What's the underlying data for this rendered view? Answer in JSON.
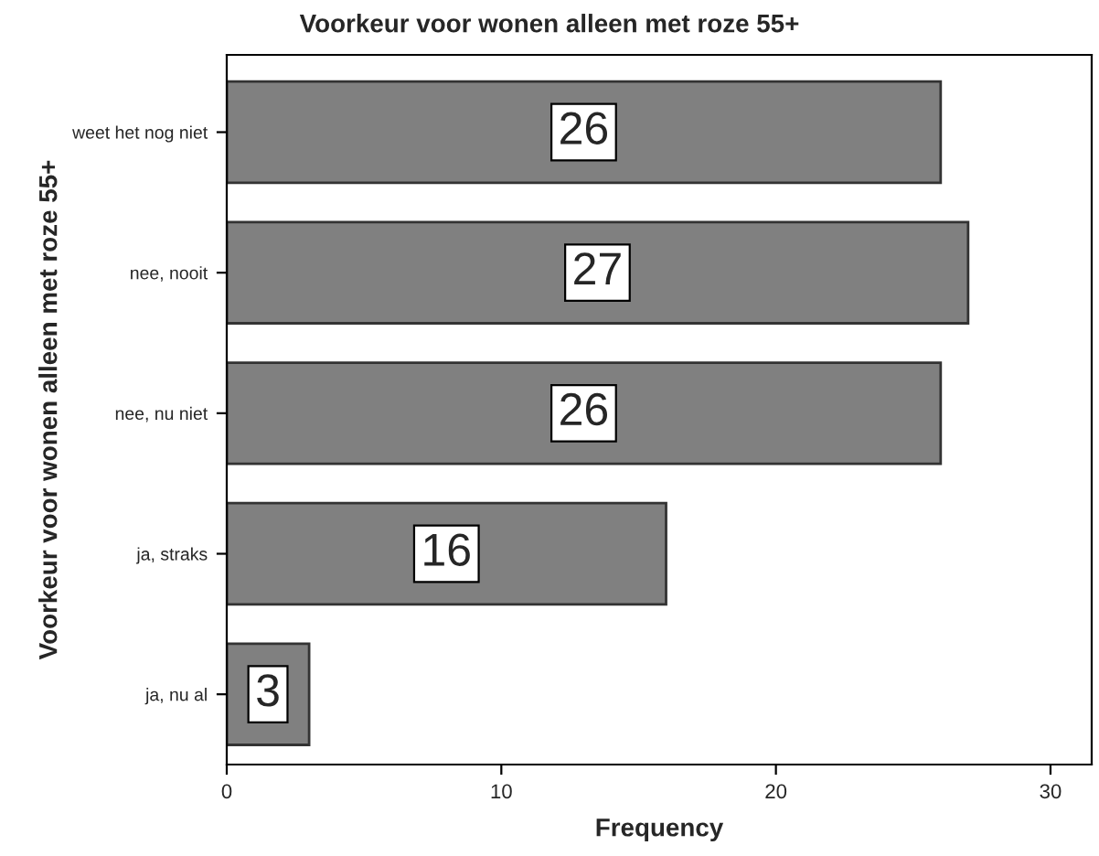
{
  "chart_data": {
    "type": "bar",
    "orientation": "horizontal",
    "title": "Voorkeur voor wonen alleen met roze 55+",
    "xlabel": "Frequency",
    "ylabel": "Voorkeur voor wonen alleen met roze 55+",
    "categories": [
      "weet het nog niet",
      "nee, nooit",
      "nee, nu niet",
      "ja, straks",
      "ja, nu al"
    ],
    "values": [
      26,
      27,
      26,
      16,
      3
    ],
    "color": "#808080",
    "xlim": [
      0,
      31.5
    ],
    "xticks": [
      0,
      10,
      20,
      30
    ],
    "data_labels": true,
    "grid": false,
    "legend": false
  }
}
